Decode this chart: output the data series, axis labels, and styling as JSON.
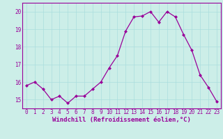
{
  "x": [
    0,
    1,
    2,
    3,
    4,
    5,
    6,
    7,
    8,
    9,
    10,
    11,
    12,
    13,
    14,
    15,
    16,
    17,
    18,
    19,
    20,
    21,
    22,
    23
  ],
  "y": [
    15.8,
    16.0,
    15.6,
    15.0,
    15.2,
    14.8,
    15.2,
    15.2,
    15.6,
    16.0,
    16.8,
    17.5,
    18.9,
    19.7,
    19.75,
    20.0,
    19.4,
    20.0,
    19.7,
    18.7,
    17.8,
    16.4,
    15.7,
    14.9
  ],
  "line_color": "#990099",
  "marker": "D",
  "marker_size": 2,
  "background_color": "#cceee8",
  "grid_color": "#aadddd",
  "xlabel": "Windchill (Refroidissement éolien,°C)",
  "xlabel_color": "#990099",
  "tick_color": "#990099",
  "spine_color": "#990099",
  "ylim": [
    14.5,
    20.5
  ],
  "xlim": [
    -0.5,
    23.5
  ],
  "yticks": [
    15,
    16,
    17,
    18,
    19,
    20
  ],
  "xticks": [
    0,
    1,
    2,
    3,
    4,
    5,
    6,
    7,
    8,
    9,
    10,
    11,
    12,
    13,
    14,
    15,
    16,
    17,
    18,
    19,
    20,
    21,
    22,
    23
  ],
  "tick_fontsize": 5.5,
  "xlabel_fontsize": 6.5,
  "linewidth": 0.9
}
